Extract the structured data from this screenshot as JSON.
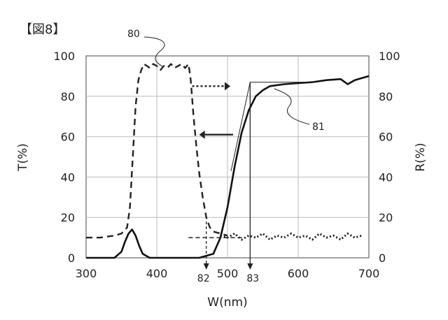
{
  "figure_label": "【図8】",
  "chart_data": {
    "type": "line",
    "xlabel": "W(nm)",
    "ylabel_left": "T(%)",
    "ylabel_right": "R(%)",
    "xlim": [
      300,
      700
    ],
    "ylim": [
      0,
      100
    ],
    "x_ticks": [
      300,
      400,
      500,
      600,
      700
    ],
    "y_ticks": [
      0,
      20,
      40,
      60,
      80,
      100
    ],
    "grid": true,
    "annotations": {
      "ref_80": "80",
      "ref_81": "81",
      "ref_82": "82",
      "ref_83": "83",
      "wavelength_82": 470,
      "wavelength_83": 532,
      "plateau_level_83": 87,
      "baseline_level_82": 10
    },
    "series": [
      {
        "id": "80",
        "axis": "right",
        "style": "dashed",
        "x": [
          300,
          320,
          340,
          350,
          358,
          362,
          366,
          370,
          374,
          378,
          382,
          386,
          390,
          395,
          400,
          405,
          410,
          415,
          420,
          425,
          430,
          435,
          440,
          445,
          448,
          452,
          456,
          460,
          465,
          470,
          475,
          480,
          490,
          500
        ],
        "y": [
          10,
          10,
          11,
          12,
          15,
          25,
          50,
          75,
          88,
          93,
          96,
          95,
          94,
          96,
          95,
          93,
          95,
          94,
          96,
          94,
          95,
          96,
          94,
          96,
          88,
          70,
          55,
          42,
          30,
          20,
          15,
          13,
          12,
          11
        ]
      },
      {
        "id": "80-baseline",
        "axis": "right",
        "style": "dotted",
        "x": [
          490,
          500,
          510,
          520,
          530,
          540,
          550,
          560,
          570,
          580,
          590,
          600,
          610,
          620,
          630,
          640,
          650,
          660,
          670,
          680,
          690
        ],
        "y": [
          11,
          10,
          12,
          9,
          11,
          10,
          12,
          9,
          11,
          10,
          12,
          10,
          11,
          9,
          12,
          10,
          11,
          9,
          12,
          10,
          11
        ]
      },
      {
        "id": "81",
        "axis": "left",
        "style": "solid",
        "x": [
          300,
          340,
          350,
          355,
          360,
          365,
          370,
          375,
          380,
          390,
          400,
          420,
          460,
          480,
          490,
          500,
          510,
          520,
          530,
          540,
          550,
          560,
          580,
          600,
          620,
          640,
          660,
          670,
          680,
          690,
          700
        ],
        "y": [
          0,
          0,
          3,
          8,
          12,
          14,
          11,
          6,
          2,
          0,
          0,
          0,
          0,
          2,
          10,
          25,
          45,
          62,
          73,
          80,
          83,
          85,
          86,
          86.5,
          87,
          88,
          88.5,
          86,
          88,
          89,
          90
        ]
      }
    ]
  }
}
